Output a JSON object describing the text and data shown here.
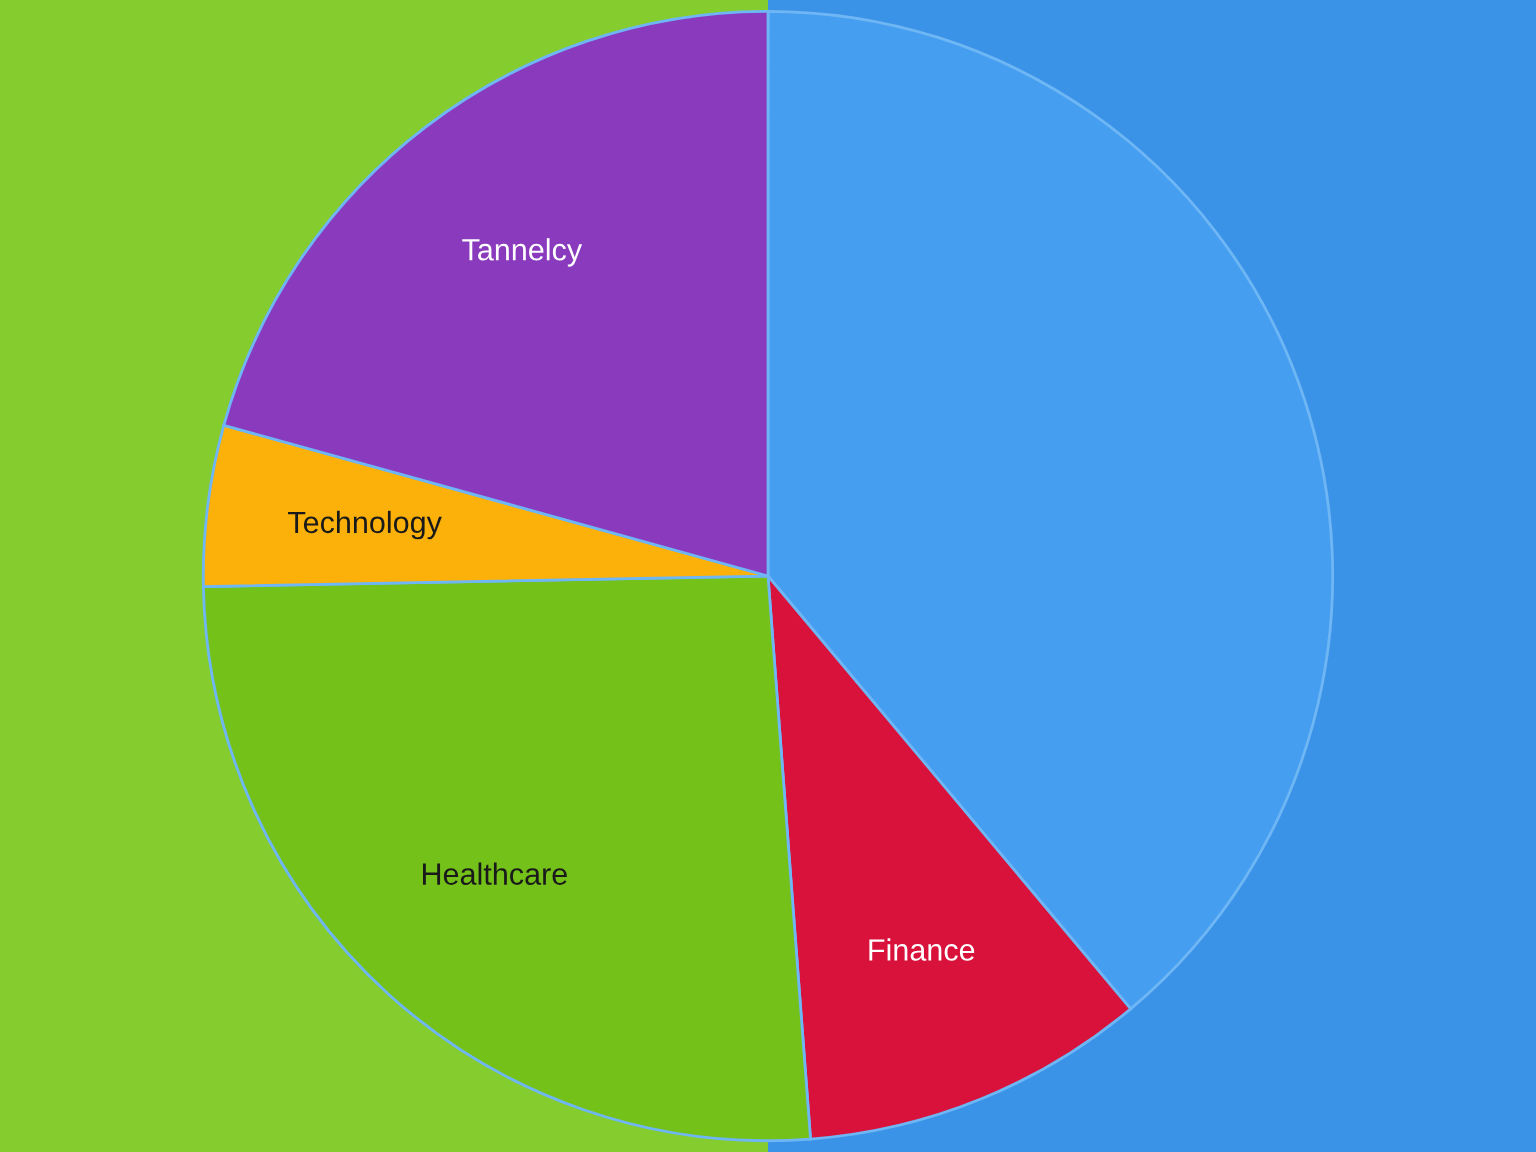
{
  "chart_data": {
    "type": "pie",
    "categories": [
      null,
      "Finance",
      "Healthcare",
      "Technology",
      "Tannelcy"
    ],
    "values": [
      38.9,
      9.9,
      25.9,
      4.6,
      20.7
    ],
    "colors": [
      "#459ef0",
      "#d8123a",
      "#74c11a",
      "#fcb10a",
      "#8a3bbd"
    ],
    "legend": false
  }
}
